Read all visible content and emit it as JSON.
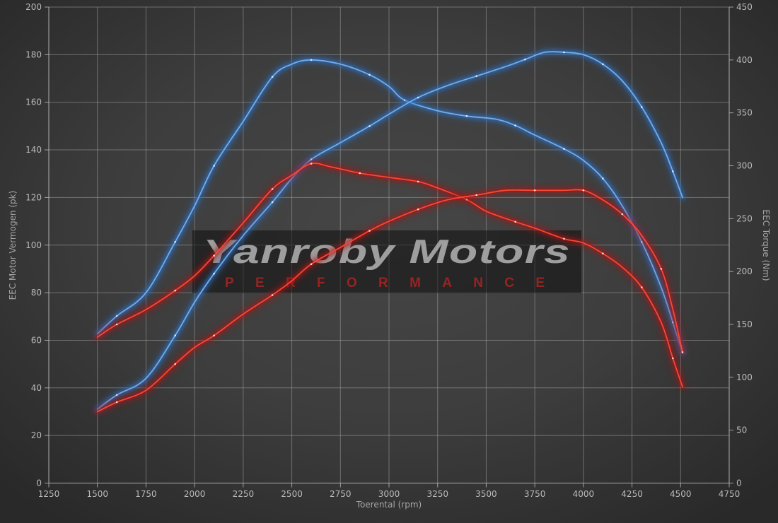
{
  "watermark": {
    "title": "Yanroby Motors",
    "subtitle": "PERFORMANCE"
  },
  "chart_data": {
    "type": "line",
    "title": "",
    "xlabel": "Toerental (rpm)",
    "ylabel_left": "EEC Motor Vermogen (pk)",
    "ylabel_right": "EEC Torque (Nm)",
    "grid": true,
    "legend_position": "none",
    "x_axis": {
      "min": 1250,
      "max": 4750,
      "ticks": [
        1250,
        1500,
        1750,
        2000,
        2250,
        2500,
        2750,
        3000,
        3250,
        3500,
        3750,
        4000,
        4250,
        4500,
        4750
      ]
    },
    "y_left_axis": {
      "min": 0,
      "max": 200,
      "unit": "pk",
      "ticks": [
        0,
        20,
        40,
        60,
        80,
        100,
        120,
        140,
        160,
        180,
        200
      ]
    },
    "y_right_axis": {
      "min": 0,
      "max": 450,
      "unit": "Nm",
      "ticks": [
        0,
        50,
        100,
        150,
        200,
        250,
        300,
        350,
        400,
        450
      ]
    },
    "colors": {
      "modified": "#2f6fc1",
      "modified_core": "#74b2f2",
      "original": "#a81616",
      "original_core": "#ff4a38",
      "marker": "#ffffff",
      "gridline": "#a9a9a9"
    },
    "series": [
      {
        "name": "modified-torque",
        "axis": "right",
        "color_key": "modified",
        "points": [
          [
            1500,
            141
          ],
          [
            1600,
            158
          ],
          [
            1750,
            180
          ],
          [
            1900,
            228
          ],
          [
            2000,
            262
          ],
          [
            2100,
            300
          ],
          [
            2250,
            342
          ],
          [
            2400,
            384
          ],
          [
            2500,
            396
          ],
          [
            2600,
            400
          ],
          [
            2750,
            396
          ],
          [
            2900,
            386
          ],
          [
            3000,
            375
          ],
          [
            3080,
            362
          ],
          [
            3250,
            352
          ],
          [
            3400,
            347
          ],
          [
            3550,
            344
          ],
          [
            3650,
            338
          ],
          [
            3750,
            329
          ],
          [
            3900,
            316
          ],
          [
            4000,
            305
          ],
          [
            4100,
            288
          ],
          [
            4200,
            262
          ],
          [
            4300,
            228
          ],
          [
            4400,
            185
          ],
          [
            4460,
            152
          ],
          [
            4510,
            123
          ]
        ]
      },
      {
        "name": "modified-power",
        "axis": "left",
        "color_key": "modified",
        "points": [
          [
            1500,
            31
          ],
          [
            1600,
            37
          ],
          [
            1750,
            44
          ],
          [
            1900,
            62
          ],
          [
            2000,
            76
          ],
          [
            2100,
            88
          ],
          [
            2250,
            104
          ],
          [
            2400,
            118
          ],
          [
            2500,
            128
          ],
          [
            2600,
            136
          ],
          [
            2750,
            143
          ],
          [
            2900,
            150
          ],
          [
            3000,
            155
          ],
          [
            3150,
            162
          ],
          [
            3300,
            167
          ],
          [
            3450,
            171
          ],
          [
            3600,
            175
          ],
          [
            3700,
            178
          ],
          [
            3800,
            181
          ],
          [
            3900,
            181
          ],
          [
            4000,
            180
          ],
          [
            4100,
            176
          ],
          [
            4200,
            169
          ],
          [
            4300,
            158
          ],
          [
            4400,
            143
          ],
          [
            4460,
            131
          ],
          [
            4510,
            120
          ]
        ]
      },
      {
        "name": "original-torque",
        "axis": "right",
        "color_key": "original",
        "points": [
          [
            1500,
            138
          ],
          [
            1600,
            150
          ],
          [
            1750,
            164
          ],
          [
            1900,
            182
          ],
          [
            2000,
            196
          ],
          [
            2100,
            215
          ],
          [
            2250,
            246
          ],
          [
            2400,
            278
          ],
          [
            2500,
            291
          ],
          [
            2600,
            302
          ],
          [
            2700,
            299
          ],
          [
            2850,
            293
          ],
          [
            3000,
            289
          ],
          [
            3150,
            285
          ],
          [
            3250,
            279
          ],
          [
            3400,
            268
          ],
          [
            3500,
            257
          ],
          [
            3650,
            247
          ],
          [
            3750,
            241
          ],
          [
            3900,
            231
          ],
          [
            4000,
            227
          ],
          [
            4100,
            217
          ],
          [
            4200,
            204
          ],
          [
            4300,
            185
          ],
          [
            4400,
            152
          ],
          [
            4460,
            118
          ],
          [
            4510,
            91
          ]
        ]
      },
      {
        "name": "original-power",
        "axis": "left",
        "color_key": "original",
        "points": [
          [
            1500,
            30
          ],
          [
            1600,
            34
          ],
          [
            1750,
            39
          ],
          [
            1900,
            50
          ],
          [
            2000,
            57
          ],
          [
            2100,
            62
          ],
          [
            2250,
            71
          ],
          [
            2400,
            79
          ],
          [
            2500,
            85
          ],
          [
            2600,
            92
          ],
          [
            2750,
            99
          ],
          [
            2900,
            106
          ],
          [
            3000,
            110
          ],
          [
            3150,
            115
          ],
          [
            3300,
            119
          ],
          [
            3450,
            121
          ],
          [
            3600,
            123
          ],
          [
            3750,
            123
          ],
          [
            3900,
            123
          ],
          [
            4000,
            123
          ],
          [
            4100,
            119
          ],
          [
            4200,
            113
          ],
          [
            4300,
            104
          ],
          [
            4400,
            90
          ],
          [
            4460,
            73
          ],
          [
            4510,
            55
          ]
        ]
      }
    ]
  }
}
